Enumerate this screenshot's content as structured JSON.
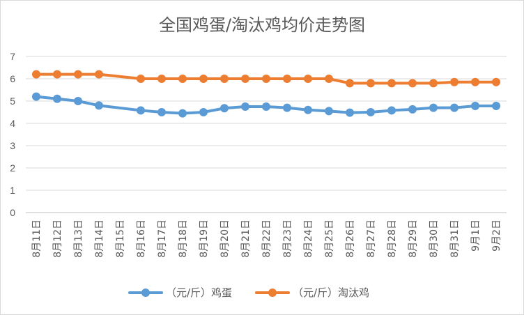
{
  "chart_data": {
    "type": "line",
    "title": "全国鸡蛋/淘汰鸡均价走势图",
    "xlabel": "",
    "ylabel": "",
    "ylim": [
      0,
      7
    ],
    "yticks": [
      0,
      1,
      2,
      3,
      4,
      5,
      6,
      7
    ],
    "grid": true,
    "legend_position": "bottom",
    "categories": [
      "8月11日",
      "8月12日",
      "8月13日",
      "8月14日",
      "8月15日",
      "8月16日",
      "8月17日",
      "8月18日",
      "8月19日",
      "8月20日",
      "8月21日",
      "8月22日",
      "8月23日",
      "8月24日",
      "8月25日",
      "8月26日",
      "8月27日",
      "8月28日",
      "8月29日",
      "8月30日",
      "8月31日",
      "9月1日",
      "9月2日"
    ],
    "series": [
      {
        "name": "（元/斤）鸡蛋",
        "color": "#5b9bd5",
        "values": [
          5.2,
          5.1,
          5.0,
          4.8,
          null,
          4.58,
          4.5,
          4.45,
          4.5,
          4.68,
          4.75,
          4.75,
          4.7,
          4.6,
          4.55,
          4.48,
          4.5,
          4.58,
          4.63,
          4.7,
          4.7,
          4.78,
          4.78
        ]
      },
      {
        "name": "（元/斤）淘汰鸡",
        "color": "#ed7d31",
        "values": [
          6.2,
          6.2,
          6.2,
          6.2,
          null,
          6.0,
          6.0,
          6.0,
          6.0,
          6.0,
          6.0,
          6.0,
          6.0,
          6.0,
          6.0,
          5.8,
          5.8,
          5.8,
          5.8,
          5.8,
          5.85,
          5.85,
          5.85
        ]
      }
    ]
  }
}
